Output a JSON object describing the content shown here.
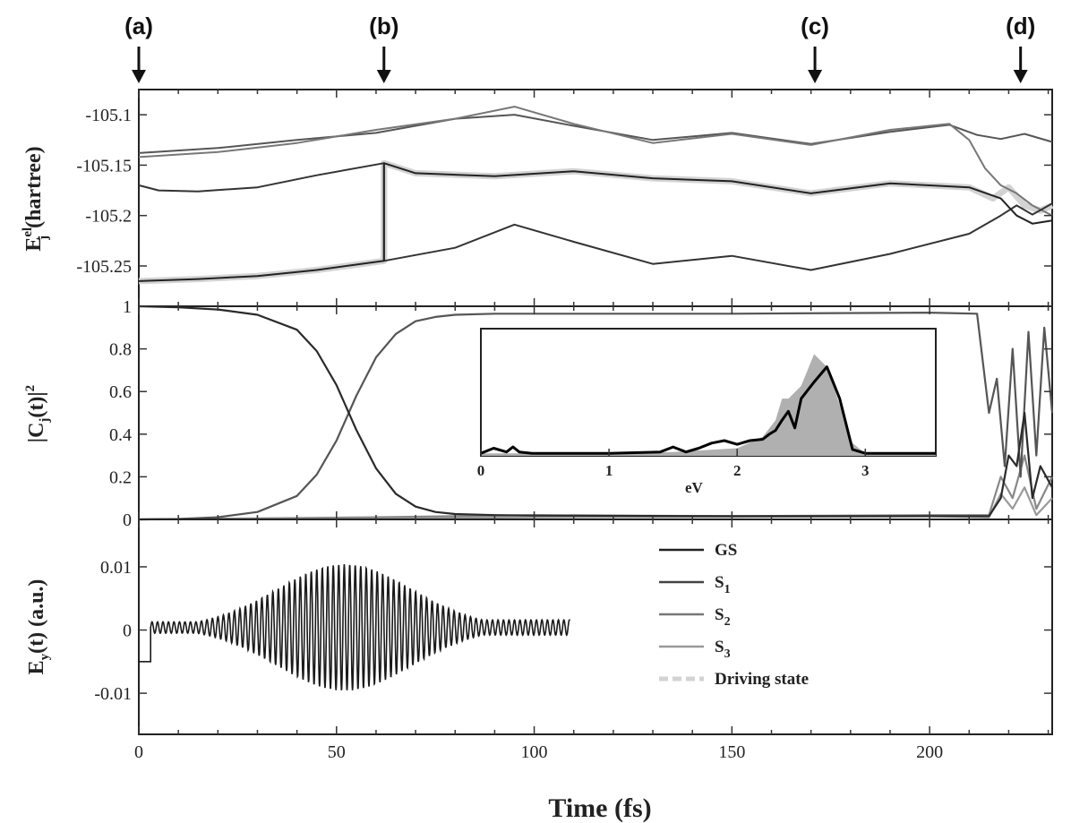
{
  "markers": [
    {
      "label": "(a)",
      "t": 0
    },
    {
      "label": "(b)",
      "t": 62
    },
    {
      "label": "(c)",
      "t": 171
    },
    {
      "label": "(d)",
      "t": 223
    }
  ],
  "x_axis": {
    "label": "Time (fs)",
    "range": [
      0,
      231
    ],
    "ticks": [
      "0",
      "50",
      "100",
      "150",
      "200"
    ]
  },
  "chart_data": [
    {
      "type": "line",
      "panel": "top",
      "ylabel_main": "E",
      "ylabel_sup": "el",
      "ylabel_sub": "j",
      "ylabel_unit": "(hartree)",
      "ylim": [
        -105.29,
        -105.075
      ],
      "yticks": [
        "-105.1",
        "-105.15",
        "-105.2",
        "-105.25"
      ],
      "series": [
        {
          "name": "S3",
          "color": "#555555",
          "x": [
            0,
            20,
            40,
            60,
            80,
            95,
            110,
            130,
            150,
            170,
            190,
            205,
            212,
            218,
            224,
            231
          ],
          "y": [
            -105.138,
            -105.133,
            -105.125,
            -105.118,
            -105.104,
            -105.1,
            -105.111,
            -105.125,
            -105.118,
            -105.129,
            -105.117,
            -105.11,
            -105.12,
            -105.124,
            -105.119,
            -105.127
          ]
        },
        {
          "name": "S2",
          "color": "#777777",
          "x": [
            0,
            20,
            40,
            60,
            80,
            95,
            110,
            130,
            150,
            170,
            190,
            205,
            210,
            214,
            218,
            222,
            226,
            231
          ],
          "y": [
            -105.142,
            -105.137,
            -105.128,
            -105.115,
            -105.104,
            -105.092,
            -105.109,
            -105.128,
            -105.119,
            -105.13,
            -105.115,
            -105.109,
            -105.125,
            -105.153,
            -105.17,
            -105.178,
            -105.19,
            -105.2
          ]
        },
        {
          "name": "S1",
          "color": "#333333",
          "x": [
            0,
            5,
            15,
            30,
            45,
            62,
            62.001,
            80,
            95,
            110,
            130,
            150,
            170,
            190,
            210,
            218,
            222,
            226,
            231
          ],
          "y": [
            -105.17,
            -105.175,
            -105.176,
            -105.172,
            -105.16,
            -105.148,
            -105.245,
            -105.232,
            -105.209,
            -105.226,
            -105.248,
            -105.24,
            -105.254,
            -105.238,
            -105.218,
            -105.2,
            -105.19,
            -105.199,
            -105.188
          ]
        },
        {
          "name": "GS",
          "color": "#222222",
          "x": [
            0,
            15,
            30,
            45,
            62,
            62.001,
            70,
            90,
            110,
            130,
            150,
            170,
            190,
            210,
            218,
            222,
            226,
            231
          ],
          "y": [
            -105.265,
            -105.263,
            -105.26,
            -105.254,
            -105.245,
            -105.148,
            -105.158,
            -105.161,
            -105.156,
            -105.163,
            -105.166,
            -105.178,
            -105.168,
            -105.172,
            -105.183,
            -105.2,
            -105.208,
            -105.205
          ]
        },
        {
          "name": "Driving state",
          "color": "#d3d3d3",
          "x": [
            0,
            15,
            30,
            45,
            62,
            62.001,
            70,
            90,
            110,
            130,
            150,
            170,
            190,
            210,
            216,
            220,
            224,
            228,
            231
          ],
          "y": [
            -105.265,
            -105.263,
            -105.26,
            -105.254,
            -105.245,
            -105.148,
            -105.158,
            -105.161,
            -105.156,
            -105.163,
            -105.166,
            -105.178,
            -105.168,
            -105.172,
            -105.183,
            -105.172,
            -105.19,
            -105.195,
            -105.19
          ]
        }
      ]
    },
    {
      "type": "line",
      "panel": "middle",
      "ylabel": "|C_j(t)|^2",
      "ylim": [
        0,
        1
      ],
      "yticks": [
        "0",
        "0.2",
        "0.4",
        "0.6",
        "0.8",
        "1"
      ],
      "series": [
        {
          "name": "GS",
          "color": "#2a2a2a",
          "x": [
            0,
            10,
            20,
            30,
            40,
            45,
            50,
            55,
            60,
            65,
            70,
            75,
            80,
            90,
            100,
            150,
            200,
            215,
            218,
            220,
            222,
            224,
            226,
            228,
            231
          ],
          "y": [
            1,
            0.995,
            0.985,
            0.96,
            0.89,
            0.79,
            0.63,
            0.42,
            0.24,
            0.12,
            0.06,
            0.035,
            0.025,
            0.02,
            0.018,
            0.015,
            0.015,
            0.015,
            0.1,
            0.3,
            0.25,
            0.5,
            0.1,
            0.25,
            0.15
          ]
        },
        {
          "name": "S1",
          "color": "#555555",
          "x": [
            0,
            10,
            20,
            30,
            40,
            45,
            50,
            55,
            60,
            65,
            70,
            75,
            80,
            90,
            100,
            150,
            200,
            212,
            215,
            217,
            219,
            221,
            223,
            225,
            227,
            229,
            231
          ],
          "y": [
            0,
            0.002,
            0.01,
            0.035,
            0.11,
            0.21,
            0.37,
            0.58,
            0.76,
            0.87,
            0.93,
            0.95,
            0.96,
            0.965,
            0.965,
            0.965,
            0.97,
            0.965,
            0.5,
            0.66,
            0.25,
            0.8,
            0.2,
            0.88,
            0.3,
            0.9,
            0.5
          ]
        },
        {
          "name": "S2",
          "color": "#888888",
          "x": [
            0,
            60,
            100,
            150,
            200,
            215,
            218,
            221,
            224,
            227,
            231
          ],
          "y": [
            0,
            0.01,
            0.02,
            0.015,
            0.02,
            0.02,
            0.2,
            0.1,
            0.3,
            0.05,
            0.2
          ]
        },
        {
          "name": "S3",
          "color": "#999999",
          "x": [
            0,
            60,
            100,
            150,
            200,
            215,
            218,
            221,
            224,
            227,
            231
          ],
          "y": [
            0,
            0.005,
            0.01,
            0.012,
            0.015,
            0.01,
            0.12,
            0.05,
            0.15,
            0.02,
            0.1
          ]
        }
      ]
    },
    {
      "type": "area",
      "panel": "inset",
      "xlabel": "eV",
      "xlim": [
        0,
        3.55
      ],
      "xticks": [
        "0",
        "1",
        "2",
        "3"
      ],
      "series": [
        {
          "name": "spectrum-shaded",
          "color": "#b0b0b0",
          "x": [
            0,
            0.5,
            1,
            1.5,
            2,
            2.2,
            2.3,
            2.35,
            2.4,
            2.5,
            2.6,
            2.7,
            2.8,
            2.9,
            3,
            3.55
          ],
          "y": [
            0.02,
            0.02,
            0.02,
            0.03,
            0.06,
            0.15,
            0.28,
            0.45,
            0.45,
            0.55,
            0.8,
            0.7,
            0.4,
            0.1,
            0.02,
            0.02
          ]
        },
        {
          "name": "spectrum-line",
          "color": "#000000",
          "x": [
            0,
            0.1,
            0.2,
            0.25,
            0.3,
            0.4,
            0.6,
            1,
            1.4,
            1.5,
            1.6,
            1.7,
            1.8,
            1.9,
            2.0,
            2.1,
            2.2,
            2.25,
            2.3,
            2.35,
            2.4,
            2.45,
            2.5,
            2.6,
            2.7,
            2.8,
            2.9,
            3,
            3.55
          ],
          "y": [
            0.02,
            0.06,
            0.03,
            0.07,
            0.03,
            0.02,
            0.02,
            0.02,
            0.03,
            0.07,
            0.03,
            0.06,
            0.1,
            0.12,
            0.09,
            0.12,
            0.13,
            0.17,
            0.2,
            0.28,
            0.35,
            0.22,
            0.45,
            0.58,
            0.7,
            0.45,
            0.05,
            0.02,
            0.02
          ]
        }
      ]
    },
    {
      "type": "line",
      "panel": "bottom",
      "ylabel": "E_y(t) (a.u.)",
      "ylim": [
        -0.0165,
        0.0175
      ],
      "yticks": [
        "0.01",
        "0",
        "-0.01"
      ],
      "series": [
        {
          "name": "E_y",
          "color": "#1a1a1a",
          "envelope_peak": 0.01,
          "envelope_center": 52,
          "t_start": 3,
          "t_end": 109,
          "cycles_per_fs": 0.72
        }
      ]
    }
  ],
  "legend": {
    "entries": [
      {
        "label": "GS",
        "sub": "",
        "color": "#222222",
        "dashed": false
      },
      {
        "label": "S",
        "sub": "1",
        "color": "#444444",
        "dashed": false
      },
      {
        "label": "S",
        "sub": "2",
        "color": "#777777",
        "dashed": false
      },
      {
        "label": "S",
        "sub": "3",
        "color": "#999999",
        "dashed": false
      },
      {
        "label": "Driving state",
        "sub": "",
        "color": "#d3d3d3",
        "dashed": true
      }
    ]
  }
}
